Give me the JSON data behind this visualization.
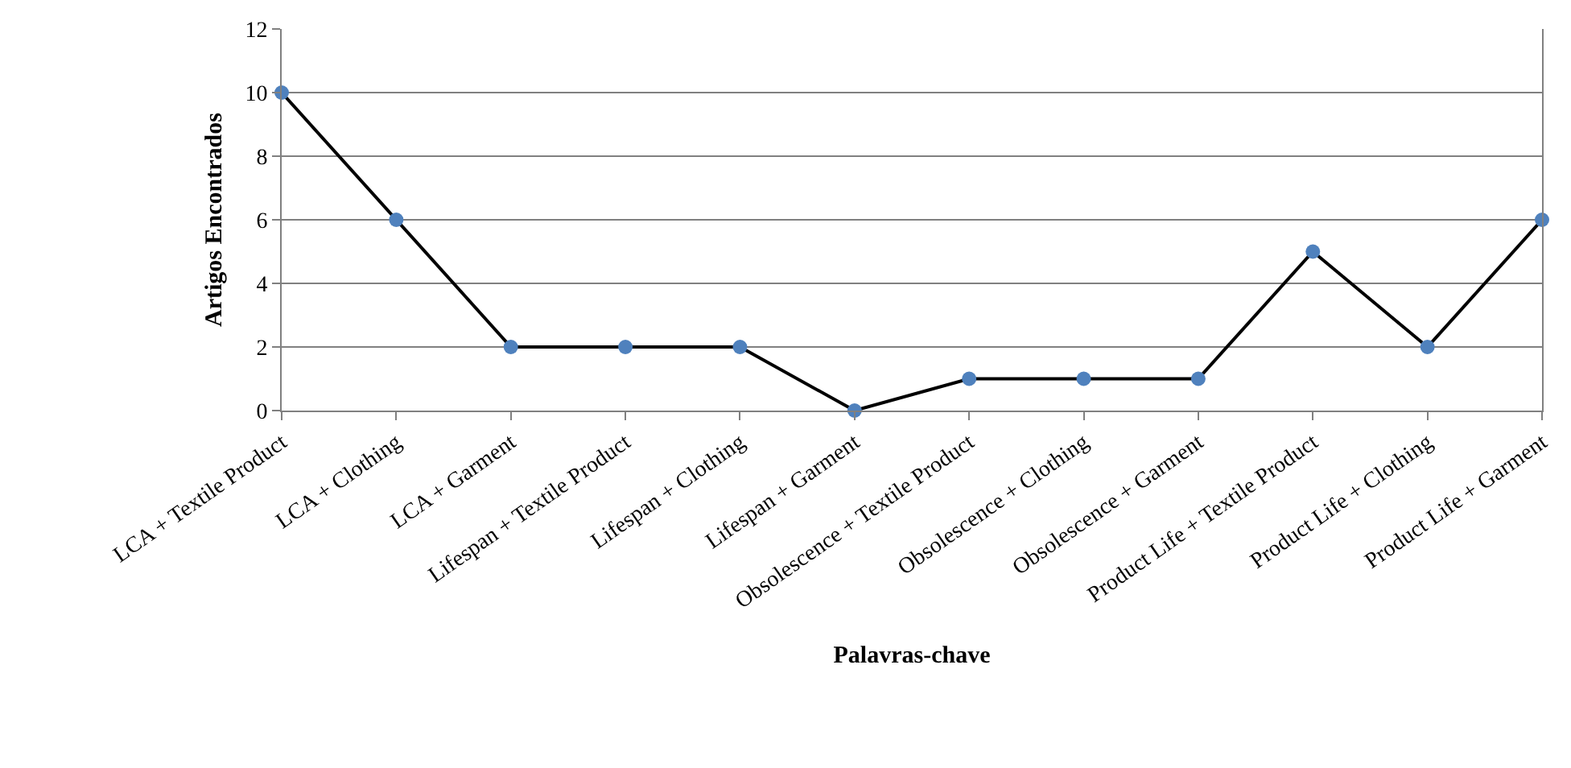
{
  "chart_data": {
    "type": "line",
    "xlabel": "Palavras-chave",
    "ylabel": "Artigos Encontrados",
    "categories": [
      "LCA + Textile Product",
      "LCA + Clothing",
      "LCA + Garment",
      "Lifespan + Textile Product",
      "Lifespan + Clothing",
      "Lifespan + Garment",
      "Obsolescence + Textile Product",
      "Obsolescence + Clothing",
      "Obsolescence + Garment",
      "Product Life + Textile Product",
      "Product Life + Clothing",
      "Product Life + Garment"
    ],
    "series": [
      {
        "color": "#4f81bd",
        "values": [
          10,
          6,
          2,
          2,
          2,
          0,
          1,
          1,
          1,
          5,
          2,
          6
        ]
      }
    ],
    "ylim": [
      0,
      12
    ],
    "yticks": [
      0,
      2,
      4,
      6,
      8,
      10,
      12
    ],
    "grid": "y",
    "marker": "circle",
    "line_style": "solid"
  }
}
